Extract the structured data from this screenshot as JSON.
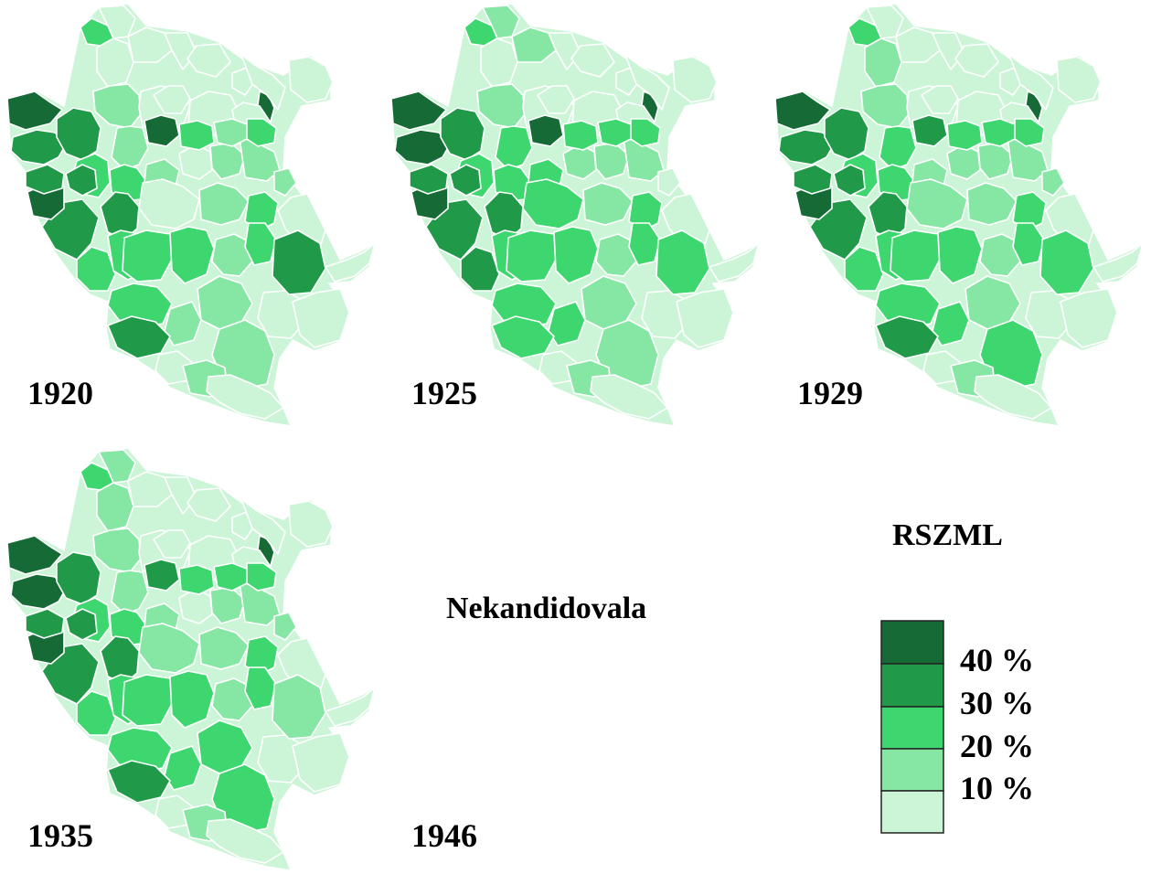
{
  "maps": [
    {
      "year": "1920",
      "status": "",
      "colors": [
        0,
        1,
        1,
        2,
        4,
        4,
        3,
        4,
        4,
        4,
        4,
        0,
        4,
        4,
        4,
        3,
        2,
        2,
        3,
        4,
        3,
        3,
        3,
        4,
        4,
        4,
        4,
        1,
        1,
        2,
        2,
        4,
        3,
        2,
        2,
        2,
        3,
        2,
        1,
        2,
        3,
        3,
        3,
        1,
        4,
        3,
        4,
        4,
        4,
        4,
        0,
        0,
        1,
        1,
        2,
        3,
        2
      ]
    },
    {
      "year": "1925",
      "status": "",
      "colors": [
        0,
        0,
        1,
        2,
        3,
        4,
        3,
        3,
        4,
        4,
        4,
        0,
        4,
        4,
        4,
        2,
        2,
        2,
        2,
        3,
        3,
        3,
        4,
        4,
        4,
        4,
        4,
        1,
        1,
        1,
        2,
        2,
        3,
        2,
        2,
        2,
        3,
        2,
        2,
        2,
        2,
        3,
        3,
        2,
        4,
        3,
        4,
        4,
        4,
        4,
        0,
        0,
        1,
        1,
        2,
        2,
        2
      ]
    },
    {
      "year": "1929",
      "status": "",
      "colors": [
        0,
        1,
        1,
        2,
        4,
        3,
        3,
        4,
        4,
        4,
        4,
        0,
        4,
        4,
        4,
        2,
        2,
        2,
        3,
        3,
        3,
        3,
        3,
        4,
        4,
        4,
        4,
        1,
        1,
        2,
        2,
        3,
        3,
        2,
        2,
        2,
        3,
        2,
        2,
        2,
        2,
        3,
        2,
        1,
        4,
        3,
        4,
        4,
        4,
        4,
        0,
        1,
        1,
        1,
        2,
        2,
        2
      ]
    },
    {
      "year": "1935",
      "status": "",
      "colors": [
        0,
        0,
        1,
        2,
        3,
        3,
        3,
        4,
        4,
        4,
        4,
        0,
        4,
        4,
        4,
        3,
        2,
        2,
        3,
        4,
        3,
        3,
        3,
        4,
        4,
        4,
        4,
        1,
        1,
        2,
        2,
        3,
        3,
        2,
        2,
        2,
        3,
        2,
        3,
        2,
        2,
        2,
        2,
        1,
        4,
        3,
        4,
        4,
        4,
        4,
        0,
        1,
        1,
        1,
        2,
        2,
        2
      ]
    },
    {
      "year": "1946",
      "status": "Nekandidovala",
      "colors": []
    }
  ],
  "legend": {
    "title": "RSZML",
    "bins": [
      {
        "label": "40 %",
        "color": "#166a35"
      },
      {
        "label": "30 %",
        "color": "#209a48"
      },
      {
        "label": "20 %",
        "color": "#3ed66e"
      },
      {
        "label": "10 %",
        "color": "#86e7a4"
      },
      {
        "label": "",
        "color": "#ccf5d8"
      }
    ]
  },
  "palette": [
    "#166a35",
    "#209a48",
    "#3ed66e",
    "#86e7a4",
    "#ccf5d8"
  ]
}
